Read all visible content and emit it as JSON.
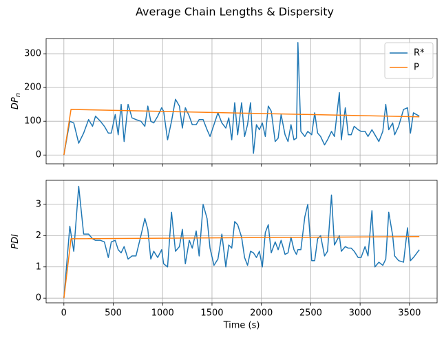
{
  "title": "Average Chain Lengths & Dispersity",
  "chart_data": [
    {
      "type": "line",
      "ylabel": "DP",
      "ylabel_subscript": "n",
      "xlim": [
        -180,
        3780
      ],
      "xticks": [
        0,
        500,
        1000,
        1500,
        2000,
        2500,
        3000,
        3500
      ],
      "ylim": [
        -26,
        345
      ],
      "yticks": [
        0,
        100,
        200,
        300
      ],
      "grid": true,
      "legend": "upper right",
      "series": [
        {
          "name": "R*",
          "color": "#1f77b4",
          "x": [
            0,
            60,
            100,
            150,
            200,
            250,
            290,
            320,
            370,
            410,
            450,
            480,
            520,
            550,
            580,
            610,
            650,
            690,
            730,
            780,
            820,
            850,
            880,
            910,
            950,
            990,
            1010,
            1050,
            1090,
            1130,
            1170,
            1200,
            1230,
            1270,
            1300,
            1340,
            1370,
            1410,
            1450,
            1480,
            1520,
            1560,
            1600,
            1640,
            1670,
            1700,
            1730,
            1760,
            1800,
            1830,
            1860,
            1890,
            1920,
            1950,
            1980,
            2010,
            2040,
            2070,
            2100,
            2140,
            2170,
            2200,
            2240,
            2270,
            2300,
            2330,
            2355,
            2370,
            2400,
            2440,
            2470,
            2510,
            2540,
            2570,
            2600,
            2640,
            2670,
            2710,
            2740,
            2790,
            2810,
            2850,
            2880,
            2910,
            2940,
            2980,
            3010,
            3050,
            3080,
            3120,
            3150,
            3190,
            3230,
            3260,
            3290,
            3330,
            3350,
            3390,
            3440,
            3480,
            3510,
            3540,
            3600
          ],
          "values": [
            0,
            100,
            95,
            35,
            65,
            105,
            85,
            115,
            100,
            85,
            65,
            65,
            120,
            60,
            150,
            40,
            150,
            110,
            105,
            100,
            85,
            145,
            100,
            95,
            115,
            140,
            130,
            45,
            100,
            165,
            145,
            80,
            140,
            115,
            90,
            90,
            105,
            105,
            75,
            55,
            90,
            125,
            95,
            80,
            110,
            45,
            155,
            60,
            155,
            55,
            90,
            155,
            5,
            90,
            75,
            95,
            55,
            145,
            130,
            40,
            50,
            120,
            60,
            40,
            90,
            45,
            50,
            333,
            70,
            55,
            70,
            60,
            125,
            65,
            55,
            30,
            45,
            70,
            55,
            185,
            45,
            140,
            60,
            60,
            85,
            75,
            70,
            70,
            55,
            75,
            60,
            40,
            70,
            150,
            75,
            95,
            60,
            85,
            135,
            140,
            65,
            125,
            115
          ]
        },
        {
          "name": "P",
          "color": "#ff7f0e",
          "x": [
            0,
            72,
            3600
          ],
          "values": [
            0,
            135,
            113
          ]
        }
      ]
    },
    {
      "type": "line",
      "ylabel": "PDI",
      "xlabel": "Time (s)",
      "xlim": [
        -180,
        3780
      ],
      "xticks": [
        0,
        500,
        1000,
        1500,
        2000,
        2500,
        3000,
        3500
      ],
      "ylim": [
        -0.15,
        3.77
      ],
      "yticks": [
        0,
        1,
        2,
        3
      ],
      "grid": true,
      "series": [
        {
          "color": "#1f77b4",
          "x": [
            0,
            60,
            100,
            150,
            200,
            250,
            290,
            320,
            370,
            410,
            450,
            480,
            520,
            550,
            580,
            610,
            650,
            690,
            730,
            780,
            820,
            850,
            880,
            910,
            950,
            990,
            1010,
            1050,
            1090,
            1130,
            1170,
            1200,
            1230,
            1270,
            1300,
            1340,
            1370,
            1410,
            1450,
            1480,
            1520,
            1560,
            1600,
            1640,
            1670,
            1700,
            1730,
            1760,
            1800,
            1830,
            1860,
            1890,
            1920,
            1950,
            1980,
            2010,
            2040,
            2070,
            2100,
            2140,
            2170,
            2200,
            2240,
            2270,
            2300,
            2330,
            2355,
            2370,
            2400,
            2440,
            2470,
            2510,
            2540,
            2570,
            2600,
            2640,
            2670,
            2710,
            2740,
            2790,
            2810,
            2850,
            2880,
            2910,
            2940,
            2980,
            3010,
            3050,
            3080,
            3120,
            3150,
            3190,
            3230,
            3260,
            3290,
            3330,
            3350,
            3390,
            3440,
            3480,
            3510,
            3540,
            3600
          ],
          "values": [
            0,
            2.3,
            1.5,
            3.58,
            2.05,
            2.05,
            1.9,
            1.85,
            1.85,
            1.8,
            1.3,
            1.8,
            1.85,
            1.55,
            1.45,
            1.65,
            1.25,
            1.35,
            1.35,
            2.0,
            2.55,
            2.2,
            1.25,
            1.5,
            1.3,
            1.55,
            1.1,
            1.0,
            2.75,
            1.5,
            1.65,
            2.2,
            1.1,
            1.85,
            1.6,
            2.15,
            1.35,
            3.0,
            2.55,
            1.6,
            1.05,
            1.25,
            2.05,
            1.0,
            1.7,
            1.6,
            2.45,
            2.35,
            1.95,
            1.3,
            1.05,
            1.5,
            1.45,
            1.3,
            1.5,
            1.0,
            2.1,
            2.35,
            1.45,
            1.8,
            1.55,
            1.85,
            1.4,
            1.45,
            1.95,
            1.55,
            1.4,
            1.55,
            1.55,
            2.6,
            3.0,
            1.2,
            1.2,
            1.9,
            2.0,
            1.35,
            1.5,
            3.3,
            1.7,
            2.0,
            1.5,
            1.65,
            1.6,
            1.6,
            1.5,
            1.3,
            1.3,
            1.65,
            1.35,
            2.8,
            1.0,
            1.15,
            1.05,
            1.25,
            2.75,
            2.0,
            1.35,
            1.2,
            1.15,
            2.25,
            1.2,
            1.3,
            1.55
          ]
        },
        {
          "color": "#ff7f0e",
          "x": [
            0,
            72,
            3600
          ],
          "values": [
            0,
            1.9,
            1.97
          ]
        }
      ]
    }
  ]
}
